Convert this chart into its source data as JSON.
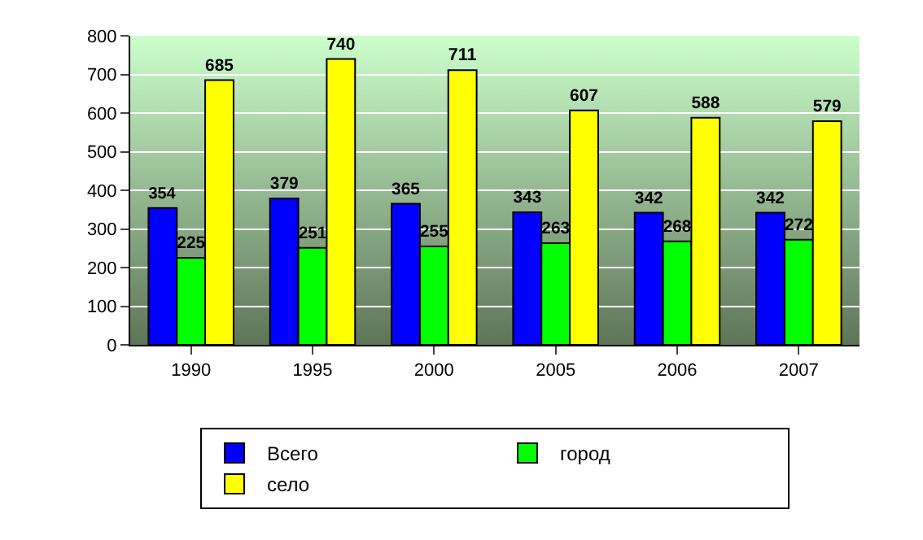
{
  "chart_data": {
    "type": "bar",
    "categories": [
      "1990",
      "1995",
      "2000",
      "2005",
      "2006",
      "2007"
    ],
    "series": [
      {
        "name": "Всего",
        "color": "#0000ff",
        "values": [
          354,
          379,
          365,
          343,
          342,
          342
        ]
      },
      {
        "name": "город",
        "color": "#00ff00",
        "values": [
          225,
          251,
          255,
          263,
          268,
          272
        ]
      },
      {
        "name": "село",
        "color": "#ffff00",
        "values": [
          685,
          740,
          711,
          607,
          588,
          579
        ]
      }
    ],
    "ylim": [
      0,
      800
    ],
    "yticks": [
      0,
      100,
      200,
      300,
      400,
      500,
      600,
      700,
      800
    ],
    "grid": "y",
    "legend": "bottom",
    "data_labels": true
  }
}
